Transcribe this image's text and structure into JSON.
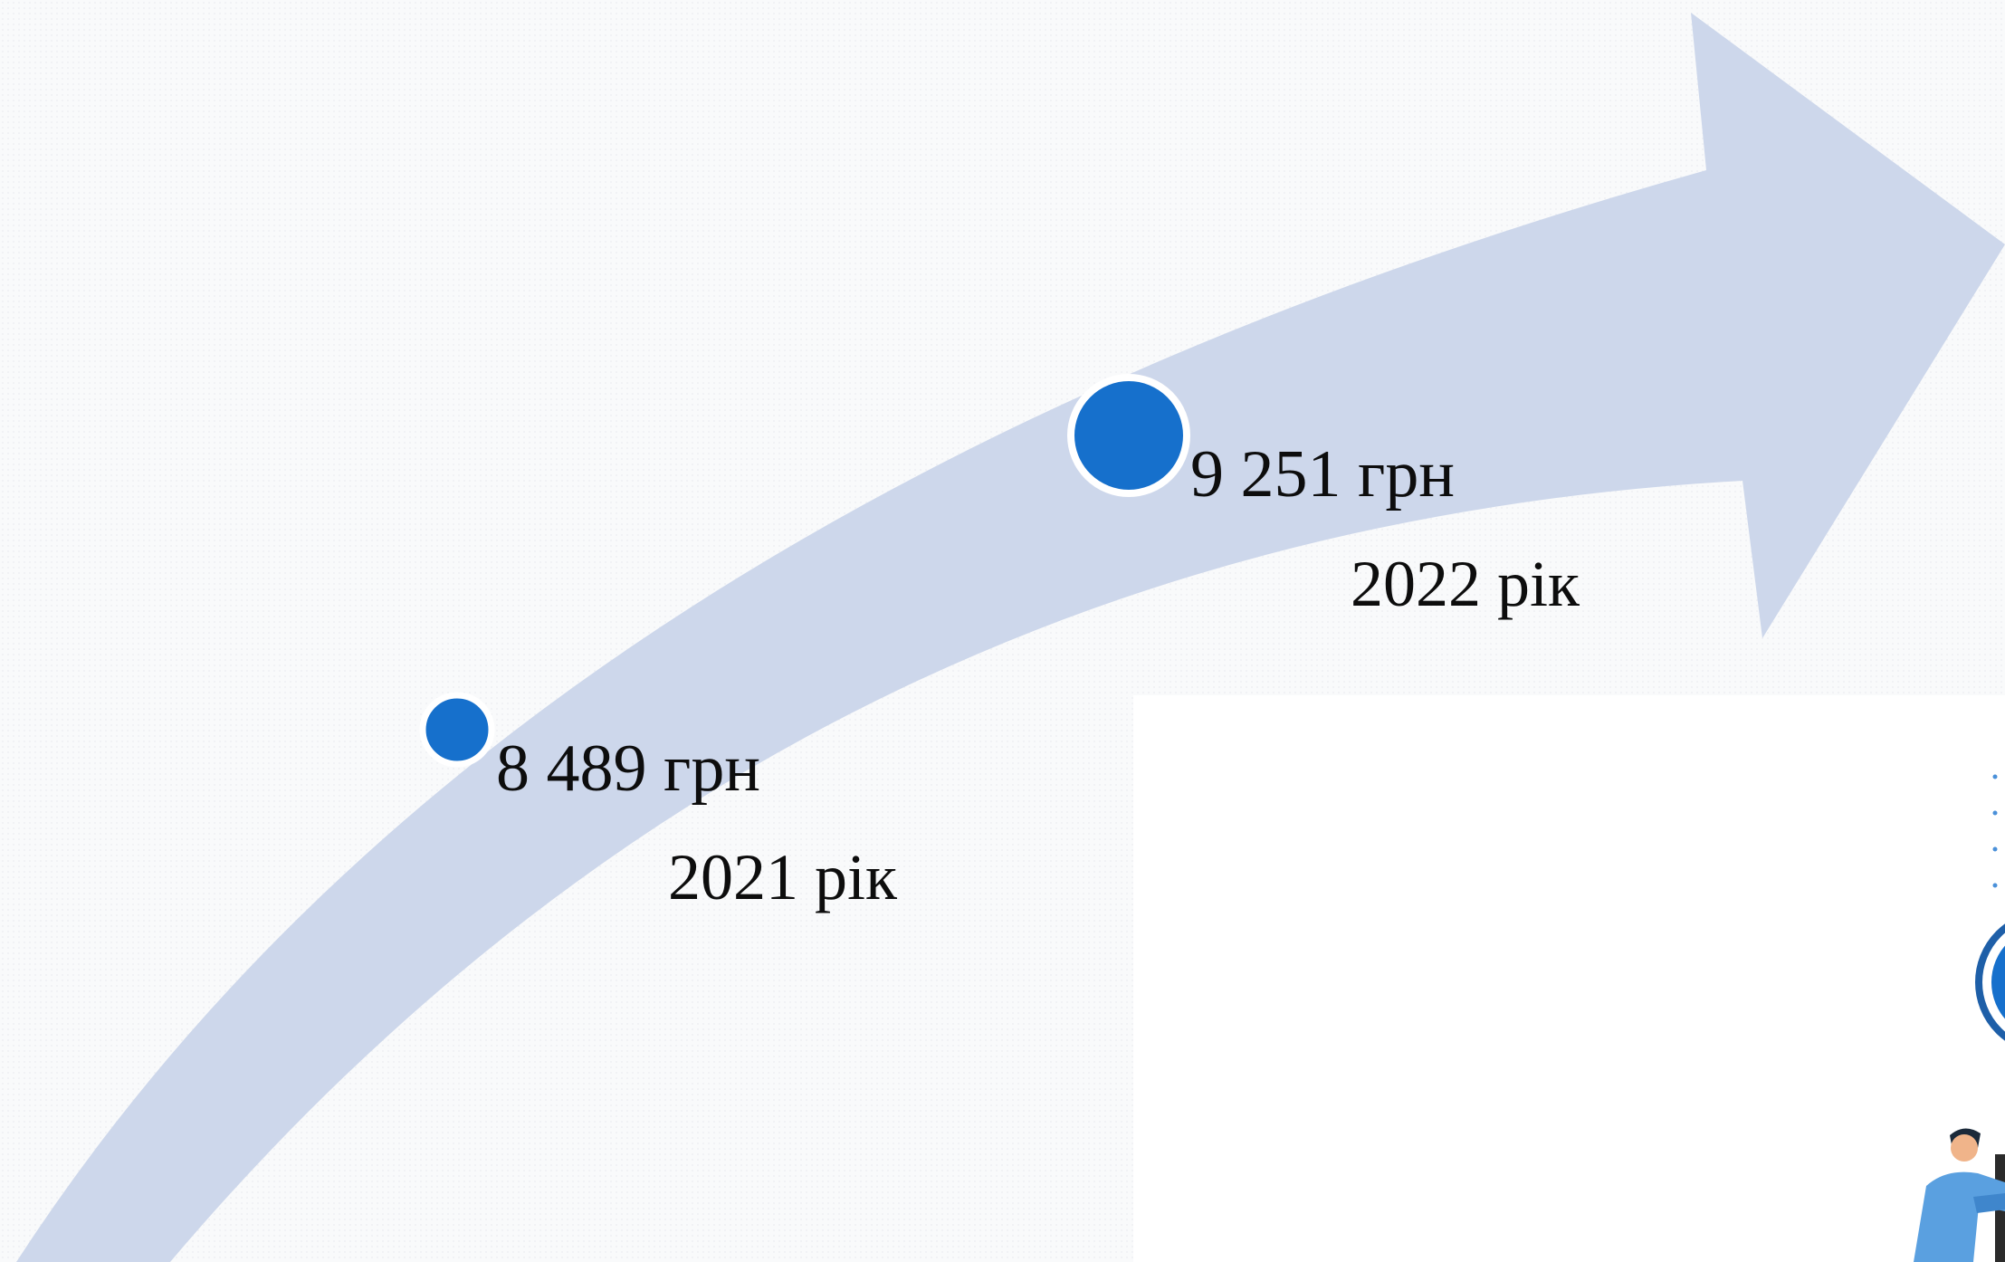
{
  "milestones": [
    {
      "value": "8 489 грн",
      "year": "2021 рік"
    },
    {
      "value": "9 251 грн",
      "year": "2022 рік"
    }
  ],
  "colors": {
    "arrow": "#cdd7eb",
    "marker": "#1670cc",
    "marker_ring": "#ffffff",
    "text": "#0d0d0d"
  },
  "icons": [
    "growth-arrow",
    "milestone-marker",
    "person-illustration",
    "globe-illustration"
  ]
}
